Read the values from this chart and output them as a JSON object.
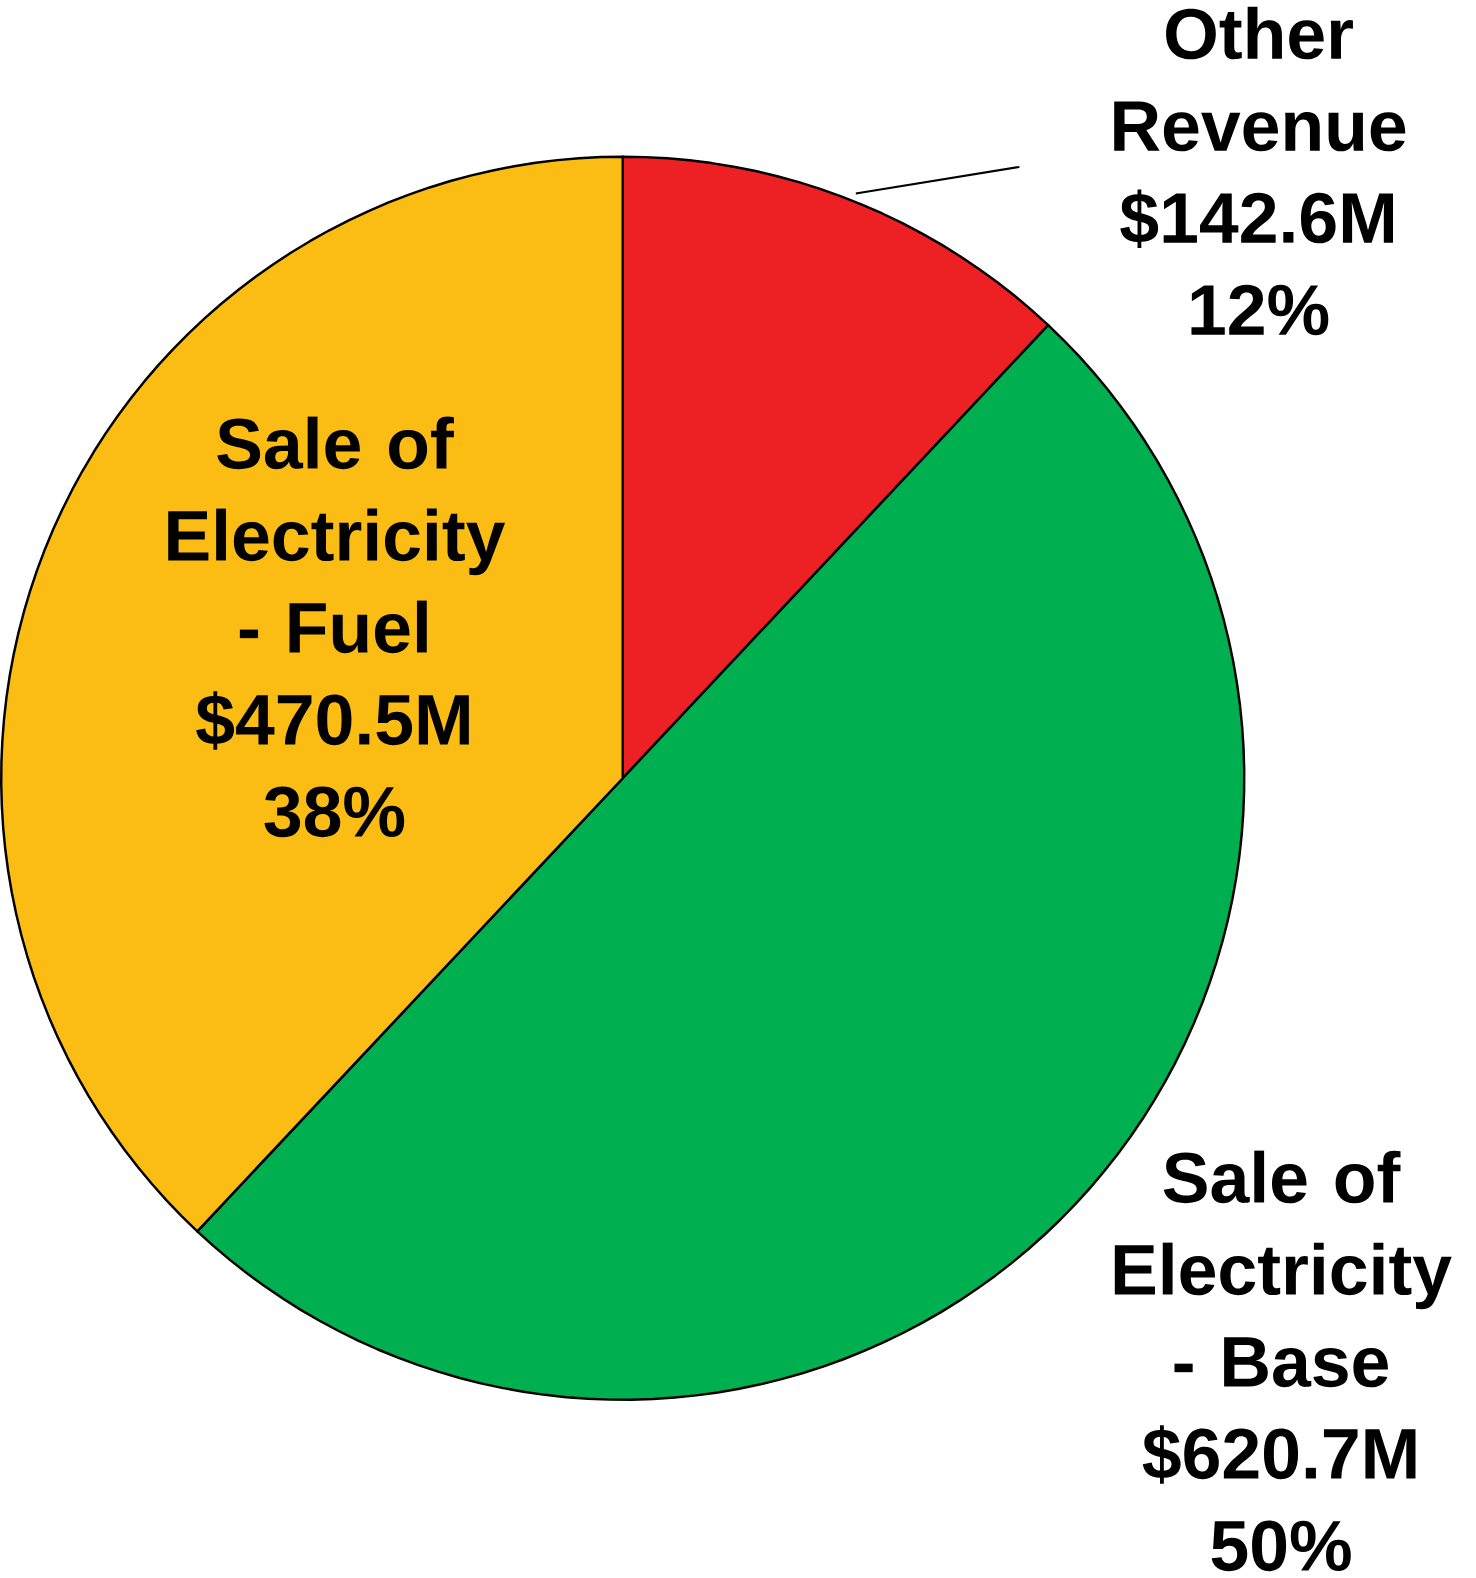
{
  "chart_data": {
    "type": "pie",
    "categories": [
      "Other Revenue $142.6M",
      "Sale of Electricity - Base $620.7M",
      "Sale of Electricity - Fuel $470.5M"
    ],
    "values": [
      12,
      50,
      38
    ],
    "colors": [
      "#ed2024",
      "#00b050",
      "#fbbc13"
    ],
    "value_labels": [
      "12%",
      "50%",
      "38%"
    ]
  }
}
